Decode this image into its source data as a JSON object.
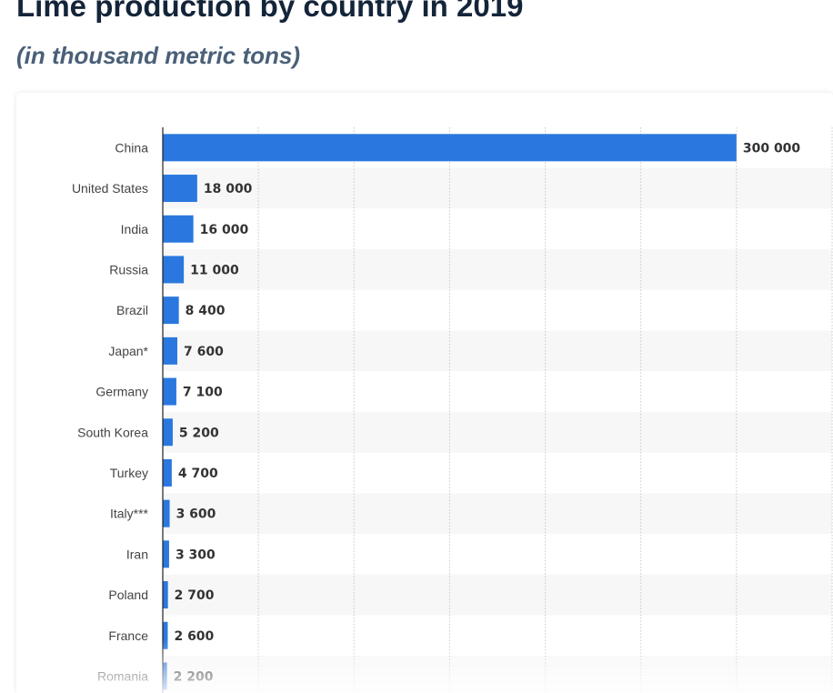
{
  "header": {
    "title": "Lime production by country in 2019",
    "subtitle": "(in thousand metric tons)"
  },
  "colors": {
    "bar": "#2a78df",
    "axis": "#222222",
    "grid": "#c8c8c8",
    "row_alt": "#f7f7f7",
    "label": "#444444",
    "value": "#333333"
  },
  "chart_data": {
    "type": "bar",
    "orientation": "horizontal",
    "title": "Lime production by country in 2019",
    "subtitle": "(in thousand metric tons)",
    "categories": [
      "China",
      "United States",
      "India",
      "Russia",
      "Brazil",
      "Japan*",
      "Germany",
      "South Korea",
      "Turkey",
      "Italy***",
      "Iran",
      "Poland",
      "France",
      "Romania"
    ],
    "values": [
      300000,
      18000,
      16000,
      11000,
      8400,
      7600,
      7100,
      5200,
      4700,
      3600,
      3300,
      2700,
      2600,
      2200
    ],
    "value_labels": [
      "300 000",
      "18 000",
      "16 000",
      "11 000",
      "8 400",
      "7 600",
      "7 100",
      "5 200",
      "4 700",
      "3 600",
      "3 300",
      "2 700",
      "2 600",
      "2 200"
    ],
    "xlim": [
      0,
      350000
    ],
    "grid": true,
    "xlabel": "",
    "ylabel": ""
  }
}
